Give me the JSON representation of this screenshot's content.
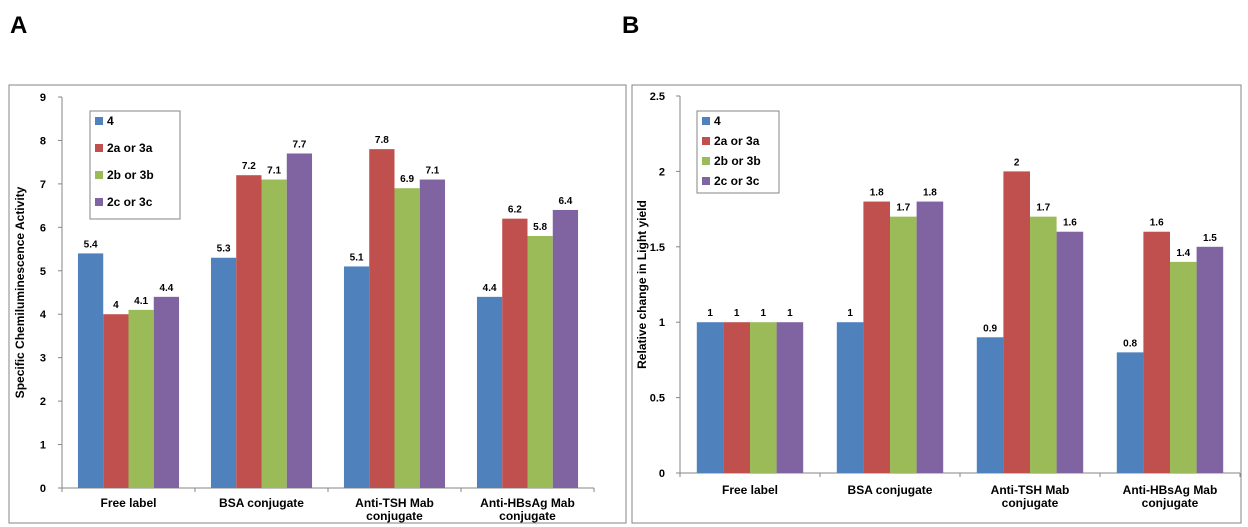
{
  "panels": {
    "left_letter": "A",
    "right_letter": "B"
  },
  "colors": {
    "series": [
      "#4F81BD",
      "#C0504D",
      "#9BBB59",
      "#8064A2"
    ],
    "frame": "#868686",
    "axis": "#868686"
  },
  "chart_data": [
    {
      "type": "bar",
      "panel": "A",
      "categories": [
        "Free label",
        "BSA conjugate",
        "Anti-TSH Mab conjugate",
        "Anti-HBsAg Mab conjugate"
      ],
      "ylabel": "Specific  Chemiluminescence Activity",
      "ylim": [
        0,
        9
      ],
      "yticks": [
        "0",
        "1",
        "2",
        "3",
        "4",
        "5",
        "6",
        "7",
        "8",
        "9"
      ],
      "legend_position": "top-left",
      "grid": false,
      "series": [
        {
          "name": "4",
          "values": [
            5.4,
            5.3,
            5.1,
            4.4
          ],
          "labels": [
            "5.4",
            "5.3",
            "5.1",
            "4.4"
          ]
        },
        {
          "name": "2a or 3a",
          "values": [
            4,
            7.2,
            7.8,
            6.2
          ],
          "labels": [
            "4",
            "7.2",
            "7.8",
            "6.2"
          ]
        },
        {
          "name": "2b or 3b",
          "values": [
            4.1,
            7.1,
            6.9,
            5.8
          ],
          "labels": [
            "4.1",
            "7.1",
            "6.9",
            "5.8"
          ]
        },
        {
          "name": "2c or 3c",
          "values": [
            4.4,
            7.7,
            7.1,
            6.4
          ],
          "labels": [
            "4.4",
            "7.7",
            "7.1",
            "6.4"
          ]
        }
      ]
    },
    {
      "type": "bar",
      "panel": "B",
      "categories": [
        "Free label",
        "BSA conjugate",
        "Anti-TSH Mab conjugate",
        "Anti-HBsAg Mab conjugate"
      ],
      "ylabel": "Relative change in Light yield",
      "ylim": [
        0,
        2.5
      ],
      "yticks": [
        "0",
        "0.5",
        "1",
        "1.5",
        "2",
        "2.5"
      ],
      "legend_position": "top-left",
      "grid": false,
      "series": [
        {
          "name": "4",
          "values": [
            1,
            1,
            0.9,
            0.8
          ],
          "labels": [
            "1",
            "1",
            "0.9",
            "0.8"
          ]
        },
        {
          "name": "2a or 3a",
          "values": [
            1,
            1.8,
            2,
            1.6
          ],
          "labels": [
            "1",
            "1.8",
            "2",
            "1.6"
          ]
        },
        {
          "name": "2b or 3b",
          "values": [
            1,
            1.7,
            1.7,
            1.4
          ],
          "labels": [
            "1",
            "1.7",
            "1.7",
            "1.4"
          ]
        },
        {
          "name": "2c or 3c",
          "values": [
            1,
            1.8,
            1.6,
            1.5
          ],
          "labels": [
            "1",
            "1.8",
            "1.6",
            "1.5"
          ]
        }
      ]
    }
  ]
}
